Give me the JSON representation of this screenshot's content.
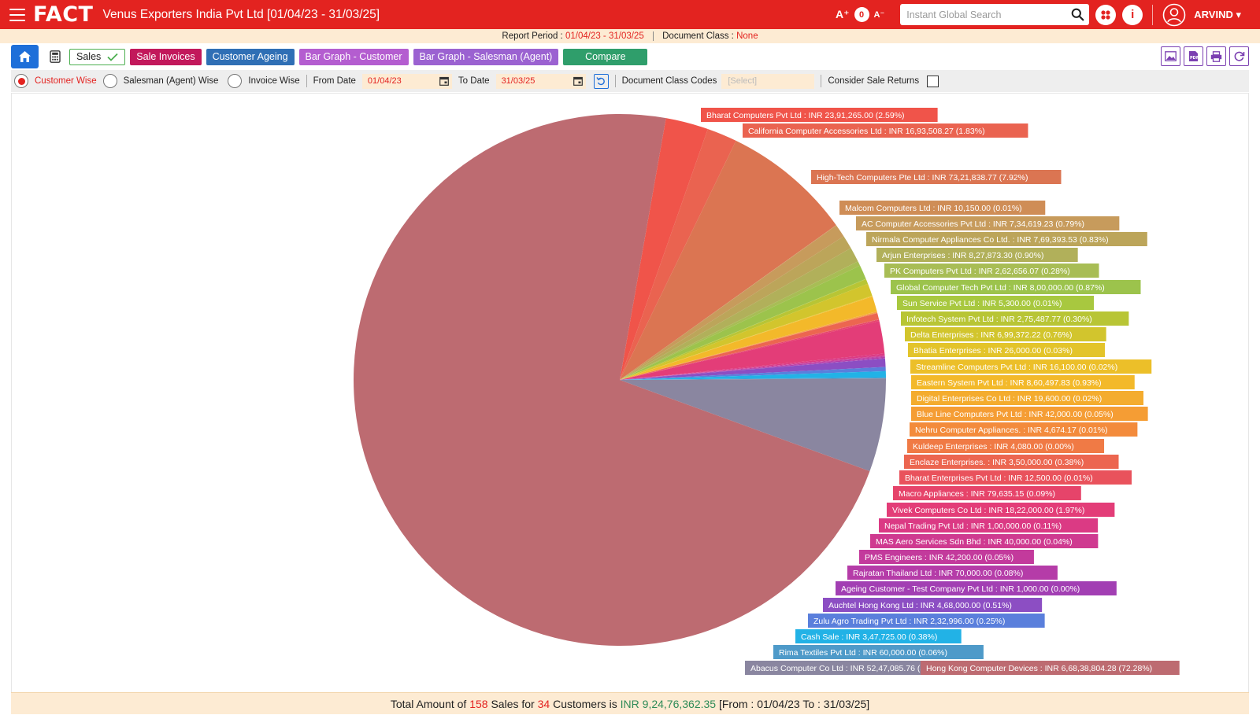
{
  "header": {
    "logo": "FACT",
    "title": "Venus Exporters India Pvt Ltd [01/04/23 - 31/03/25]",
    "font_increase": "A⁺",
    "font_count": "0",
    "font_decrease": "A⁻",
    "search_placeholder": "Instant Global Search",
    "user_name": "ARVIND ▾"
  },
  "report_bar": {
    "period_label": "Report Period :",
    "period_value": "01/04/23 - 31/03/25",
    "doc_class_label": "Document Class :",
    "doc_class_value": "None"
  },
  "toolbar": {
    "sales_label": "Sales",
    "invoices_label": "Sale Invoices",
    "ageing_label": "Customer Ageing",
    "bar_customer_label": "Bar Graph - Customer",
    "bar_salesman_label": "Bar Graph - Salesman (Agent)",
    "compare_label": "Compare"
  },
  "filters": {
    "customer_wise": "Customer Wise",
    "salesman_wise": "Salesman (Agent) Wise",
    "invoice_wise": "Invoice Wise",
    "from_date_label": "From Date",
    "from_date_value": "01/04/23",
    "to_date_label": "To Date",
    "to_date_value": "31/03/25",
    "doc_class_codes_label": "Document Class Codes",
    "doc_class_codes_placeholder": "[Select]",
    "consider_returns_label": "Consider Sale Returns"
  },
  "chart_data": {
    "type": "pie",
    "currency": "INR",
    "slices": [
      {
        "name": "Bharat Computers Pvt Ltd",
        "value": "23,91,265.00",
        "percent": 2.59,
        "color": "#f0544a"
      },
      {
        "name": "California Computer Accessories Ltd",
        "value": "16,93,508.27",
        "percent": 1.83,
        "color": "#ea6350"
      },
      {
        "name": "High-Tech Computers Pte Ltd",
        "value": "73,21,838.77",
        "percent": 7.92,
        "color": "#db7552"
      },
      {
        "name": "Malcom Computers Ltd",
        "value": "10,150.00",
        "percent": 0.01,
        "color": "#cf8d56"
      },
      {
        "name": "AC Computer Accessories Pvt Ltd",
        "value": "7,34,619.23",
        "percent": 0.79,
        "color": "#c79b5c"
      },
      {
        "name": "Nirmala Computer Appliances Co Ltd.",
        "value": "7,69,393.53",
        "percent": 0.83,
        "color": "#bca55a"
      },
      {
        "name": "Arjun Enterprises",
        "value": "8,27,873.30",
        "percent": 0.9,
        "color": "#b1b05a"
      },
      {
        "name": "PK Computers Pvt Ltd",
        "value": "2,62,656.07",
        "percent": 0.28,
        "color": "#a8bd55"
      },
      {
        "name": "Global Computer Tech Pvt Ltd",
        "value": "8,00,000.00",
        "percent": 0.87,
        "color": "#9cc34c"
      },
      {
        "name": "Sun Service Pvt Ltd",
        "value": "5,300.00",
        "percent": 0.01,
        "color": "#a8c83f"
      },
      {
        "name": "Infotech System Pvt Ltd",
        "value": "2,75,487.77",
        "percent": 0.3,
        "color": "#b8c535"
      },
      {
        "name": "Delta Enterprises",
        "value": "6,99,372.22",
        "percent": 0.76,
        "color": "#d2c52d"
      },
      {
        "name": "Bhatia Enterprises",
        "value": "26,000.00",
        "percent": 0.03,
        "color": "#e3c42a"
      },
      {
        "name": "Streamline Computers Pvt Ltd",
        "value": "16,100.00",
        "percent": 0.02,
        "color": "#ecbf29"
      },
      {
        "name": "Eastern System Pvt Ltd",
        "value": "8,60,497.83",
        "percent": 0.93,
        "color": "#f3b92a"
      },
      {
        "name": "Digital Enterprises Co Ltd",
        "value": "19,600.00",
        "percent": 0.02,
        "color": "#f4ac2e"
      },
      {
        "name": "Blue Line Computers Pvt Ltd",
        "value": "42,000.00",
        "percent": 0.05,
        "color": "#f59d34"
      },
      {
        "name": "Nehru Computer Appliances.",
        "value": "4,674.17",
        "percent": 0.01,
        "color": "#f38b3c"
      },
      {
        "name": "Kuldeep Enterprises",
        "value": "4,080.00",
        "percent": 0.0,
        "color": "#f07a45"
      },
      {
        "name": "Enclaze Enterprises.",
        "value": "3,50,000.00",
        "percent": 0.38,
        "color": "#ec6650"
      },
      {
        "name": "Bharat Enterprises Pvt Ltd",
        "value": "12,500.00",
        "percent": 0.01,
        "color": "#e9525c"
      },
      {
        "name": "Macro Appliances",
        "value": "79,635.15",
        "percent": 0.09,
        "color": "#e6446a"
      },
      {
        "name": "Vivek Computers Co Ltd",
        "value": "18,22,000.00",
        "percent": 1.97,
        "color": "#e33d78"
      },
      {
        "name": "Nepal Trading Pvt Ltd",
        "value": "1,00,000.00",
        "percent": 0.11,
        "color": "#db3a84"
      },
      {
        "name": "MAS Aero Services Sdn Bhd",
        "value": "40,000.00",
        "percent": 0.04,
        "color": "#cf3a90"
      },
      {
        "name": "PMS Engineers",
        "value": "42,200.00",
        "percent": 0.05,
        "color": "#c33a9c"
      },
      {
        "name": "Rajratan Thailand Ltd",
        "value": "70,000.00",
        "percent": 0.08,
        "color": "#b53ca8"
      },
      {
        "name": "Ageing Customer - Test Company Pvt Ltd",
        "value": "1,000.00",
        "percent": 0.0,
        "color": "#a23fb3"
      },
      {
        "name": "Auchtel Hong Kong Ltd",
        "value": "4,68,000.00",
        "percent": 0.51,
        "color": "#8c4ec3"
      },
      {
        "name": "Zulu Agro Trading Pvt Ltd",
        "value": "2,32,996.00",
        "percent": 0.25,
        "color": "#5a7fdc"
      },
      {
        "name": "Cash Sale",
        "value": "3,47,725.00",
        "percent": 0.38,
        "color": "#22b2e6"
      },
      {
        "name": "Rima Textiles Pvt Ltd",
        "value": "60,000.00",
        "percent": 0.06,
        "color": "#4e9ac9"
      },
      {
        "name": "Abacus Computer Co Ltd",
        "value": "52,47,085.76",
        "percent": 5.67,
        "color": "#8a86a0"
      },
      {
        "name": "Hong Kong Computer Devices",
        "value": "6,68,38,804.28",
        "percent": 72.28,
        "color": "#bd6b71"
      }
    ]
  },
  "footer": {
    "text1": "Total Amount of ",
    "sales_count": "158",
    "text2": " Sales for ",
    "customer_count": "34",
    "text3": " Customers is ",
    "total_amount": "INR 9,24,76,362.35",
    "text4": " [From : 01/04/23 To : 31/03/25]"
  }
}
